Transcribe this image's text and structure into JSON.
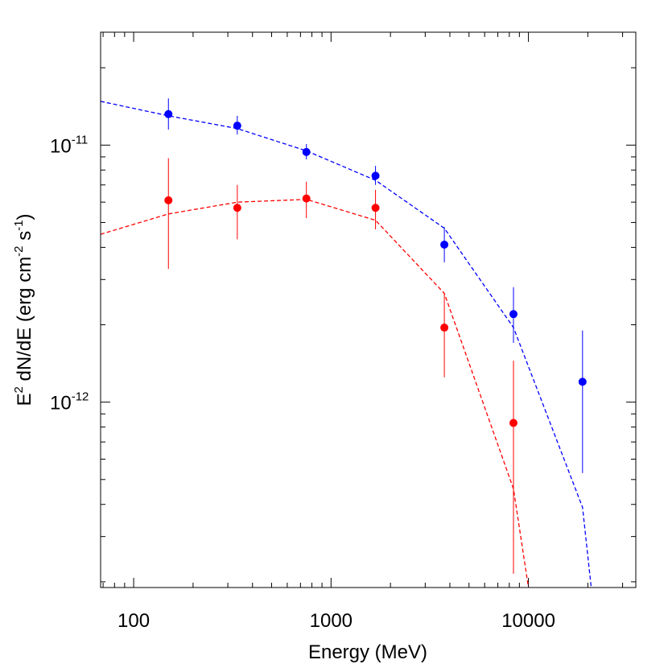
{
  "chart_data": {
    "type": "scatter",
    "xlabel": "Energy (MeV)",
    "ylabel": {
      "parts": [
        {
          "text": "E",
          "shift": "base"
        },
        {
          "text": "2",
          "shift": "sup"
        },
        {
          "text": " dN/dE (erg cm",
          "shift": "base"
        },
        {
          "text": "-2",
          "shift": "sup"
        },
        {
          "text": " s",
          "shift": "base"
        },
        {
          "text": "-1",
          "shift": "sup"
        },
        {
          "text": ")",
          "shift": "base"
        }
      ]
    },
    "x_scale": "log",
    "y_scale": "log",
    "xlim": [
      68,
      35000
    ],
    "ylim": [
      1.9e-13,
      2.75e-11
    ],
    "x_ticks": [
      {
        "value": 100,
        "label": "100"
      },
      {
        "value": 1000,
        "label": "1000"
      },
      {
        "value": 10000,
        "label": "10000"
      }
    ],
    "y_ticks": [
      {
        "value": 1e-11,
        "base": "10",
        "exp": "-11"
      },
      {
        "value": 1e-12,
        "base": "10",
        "exp": "-12"
      }
    ],
    "grid": false,
    "series": [
      {
        "color": "#0000ff",
        "points": [
          {
            "x": 150,
            "y": 1.32e-11,
            "ylo": 1.15e-11,
            "yhi": 1.52e-11
          },
          {
            "x": 335,
            "y": 1.19e-11,
            "ylo": 1.1e-11,
            "yhi": 1.3e-11
          },
          {
            "x": 750,
            "y": 9.4e-12,
            "ylo": 8.8e-12,
            "yhi": 1.01e-11
          },
          {
            "x": 1680,
            "y": 7.6e-12,
            "ylo": 7e-12,
            "yhi": 8.3e-12
          },
          {
            "x": 3750,
            "y": 4.1e-12,
            "ylo": 3.5e-12,
            "yhi": 4.8e-12
          },
          {
            "x": 8400,
            "y": 2.2e-12,
            "ylo": 1.7e-12,
            "yhi": 2.8e-12
          },
          {
            "x": 18800,
            "y": 1.2e-12,
            "ylo": 5.3e-13,
            "yhi": 1.9e-12
          }
        ],
        "model": [
          [
            68,
            1.48e-11
          ],
          [
            150,
            1.3e-11
          ],
          [
            335,
            1.16e-11
          ],
          [
            750,
            9.5e-12
          ],
          [
            1680,
            7.3e-12
          ],
          [
            3750,
            4.75e-12
          ],
          [
            8400,
            1.95e-12
          ],
          [
            18800,
            3.9e-13
          ],
          [
            20800,
            1.9e-13
          ]
        ]
      },
      {
        "color": "#ff0000",
        "points": [
          {
            "x": 150,
            "y": 6.1e-12,
            "ylo": 3.3e-12,
            "yhi": 8.9e-12
          },
          {
            "x": 335,
            "y": 5.7e-12,
            "ylo": 4.3e-12,
            "yhi": 7e-12
          },
          {
            "x": 750,
            "y": 6.2e-12,
            "ylo": 5.2e-12,
            "yhi": 7.2e-12
          },
          {
            "x": 1680,
            "y": 5.7e-12,
            "ylo": 4.7e-12,
            "yhi": 6.7e-12
          },
          {
            "x": 3750,
            "y": 1.95e-12,
            "ylo": 1.25e-12,
            "yhi": 2.65e-12
          },
          {
            "x": 8400,
            "y": 8.3e-13,
            "ylo": 2.15e-13,
            "yhi": 1.45e-12
          }
        ],
        "model": [
          [
            68,
            4.5e-12
          ],
          [
            150,
            5.4e-12
          ],
          [
            335,
            6e-12
          ],
          [
            750,
            6.15e-12
          ],
          [
            1680,
            5.1e-12
          ],
          [
            3750,
            2.65e-12
          ],
          [
            8400,
            4.6e-13
          ],
          [
            10000,
            1.9e-13
          ]
        ]
      }
    ]
  }
}
